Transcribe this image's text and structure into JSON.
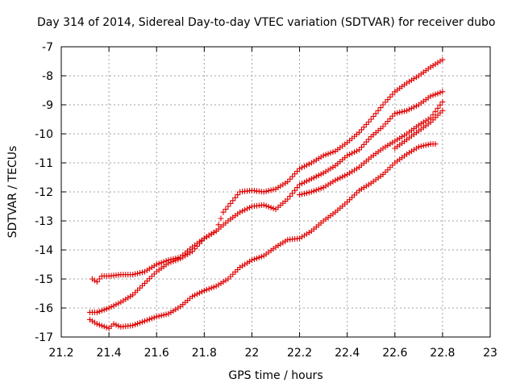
{
  "chart_data": {
    "type": "scatter",
    "title": "Day 314 of 2014, Sidereal Day-to-day VTEC variation (SDTVAR) for receiver dubo",
    "xlabel": "GPS time / hours",
    "ylabel": "SDTVAR / TECUs",
    "xlim": [
      21.2,
      23
    ],
    "ylim": [
      -17,
      -7
    ],
    "xticks": [
      "21.2",
      "21.4",
      "21.6",
      "21.8",
      "22",
      "22.2",
      "22.4",
      "22.6",
      "22.8",
      "23"
    ],
    "yticks": [
      "-7",
      "-8",
      "-9",
      "-10",
      "-11",
      "-12",
      "-13",
      "-14",
      "-15",
      "-16",
      "-17"
    ],
    "grid": true,
    "marker": "+",
    "color": "#e00000",
    "series": [
      {
        "points": [
          [
            21.33,
            -15.0
          ],
          [
            21.35,
            -15.1
          ],
          [
            21.37,
            -14.9
          ],
          [
            21.4,
            -14.9
          ],
          [
            21.45,
            -14.85
          ],
          [
            21.5,
            -14.85
          ],
          [
            21.55,
            -14.75
          ],
          [
            21.6,
            -14.5
          ],
          [
            21.65,
            -14.35
          ],
          [
            21.7,
            -14.25
          ],
          [
            21.75,
            -13.9
          ],
          [
            21.8,
            -13.6
          ],
          [
            21.85,
            -13.35
          ],
          [
            21.9,
            -13.0
          ],
          [
            21.95,
            -12.7
          ],
          [
            22.0,
            -12.5
          ],
          [
            22.05,
            -12.45
          ],
          [
            22.1,
            -12.6
          ],
          [
            22.15,
            -12.25
          ],
          [
            22.2,
            -11.75
          ],
          [
            22.25,
            -11.55
          ],
          [
            22.3,
            -11.35
          ],
          [
            22.35,
            -11.1
          ],
          [
            22.4,
            -10.75
          ],
          [
            22.45,
            -10.55
          ],
          [
            22.5,
            -10.1
          ],
          [
            22.55,
            -9.75
          ],
          [
            22.6,
            -9.3
          ],
          [
            22.65,
            -9.2
          ],
          [
            22.7,
            -9.0
          ],
          [
            22.75,
            -8.7
          ],
          [
            22.8,
            -8.55
          ]
        ]
      },
      {
        "points": [
          [
            21.32,
            -16.15
          ],
          [
            21.35,
            -16.15
          ],
          [
            21.4,
            -16.0
          ],
          [
            21.45,
            -15.8
          ],
          [
            21.5,
            -15.55
          ],
          [
            21.55,
            -15.15
          ],
          [
            21.6,
            -14.75
          ],
          [
            21.65,
            -14.45
          ],
          [
            21.7,
            -14.3
          ],
          [
            21.75,
            -14.05
          ],
          [
            21.8,
            -13.6
          ],
          [
            21.85,
            -13.35
          ],
          [
            21.88,
            -12.7
          ],
          [
            21.92,
            -12.3
          ],
          [
            21.95,
            -12.0
          ],
          [
            22.0,
            -11.95
          ],
          [
            22.05,
            -12.0
          ],
          [
            22.1,
            -11.9
          ],
          [
            22.15,
            -11.65
          ],
          [
            22.2,
            -11.2
          ],
          [
            22.25,
            -11.0
          ],
          [
            22.3,
            -10.75
          ],
          [
            22.35,
            -10.6
          ],
          [
            22.4,
            -10.3
          ],
          [
            22.45,
            -9.95
          ],
          [
            22.5,
            -9.5
          ],
          [
            22.55,
            -9.0
          ],
          [
            22.6,
            -8.55
          ],
          [
            22.65,
            -8.25
          ],
          [
            22.7,
            -8.0
          ],
          [
            22.75,
            -7.7
          ],
          [
            22.8,
            -7.45
          ]
        ]
      },
      {
        "points": [
          [
            21.32,
            -16.4
          ],
          [
            21.35,
            -16.55
          ],
          [
            21.4,
            -16.7
          ],
          [
            21.42,
            -16.55
          ],
          [
            21.45,
            -16.65
          ],
          [
            21.5,
            -16.6
          ],
          [
            21.55,
            -16.45
          ],
          [
            21.6,
            -16.3
          ],
          [
            21.65,
            -16.2
          ],
          [
            21.7,
            -15.95
          ],
          [
            21.75,
            -15.6
          ],
          [
            21.8,
            -15.4
          ],
          [
            21.85,
            -15.25
          ],
          [
            21.9,
            -15.0
          ],
          [
            21.95,
            -14.6
          ],
          [
            22.0,
            -14.35
          ],
          [
            22.05,
            -14.2
          ],
          [
            22.1,
            -13.9
          ],
          [
            22.15,
            -13.65
          ],
          [
            22.2,
            -13.6
          ],
          [
            22.25,
            -13.35
          ],
          [
            22.3,
            -13.0
          ],
          [
            22.35,
            -12.7
          ],
          [
            22.4,
            -12.35
          ],
          [
            22.45,
            -11.95
          ],
          [
            22.5,
            -11.7
          ],
          [
            22.55,
            -11.4
          ],
          [
            22.6,
            -11.0
          ],
          [
            22.65,
            -10.7
          ],
          [
            22.7,
            -10.45
          ],
          [
            22.75,
            -10.35
          ],
          [
            22.77,
            -10.35
          ]
        ]
      },
      {
        "points": [
          [
            22.2,
            -12.1
          ],
          [
            22.25,
            -12.0
          ],
          [
            22.3,
            -11.85
          ],
          [
            22.35,
            -11.6
          ],
          [
            22.4,
            -11.4
          ],
          [
            22.45,
            -11.15
          ],
          [
            22.5,
            -10.8
          ],
          [
            22.55,
            -10.5
          ],
          [
            22.6,
            -10.25
          ],
          [
            22.65,
            -10.0
          ],
          [
            22.7,
            -9.7
          ],
          [
            22.75,
            -9.45
          ],
          [
            22.8,
            -8.9
          ]
        ]
      },
      {
        "points": [
          [
            22.6,
            -10.5
          ],
          [
            22.65,
            -10.2
          ],
          [
            22.7,
            -9.9
          ],
          [
            22.75,
            -9.6
          ],
          [
            22.8,
            -9.2
          ]
        ]
      }
    ]
  }
}
